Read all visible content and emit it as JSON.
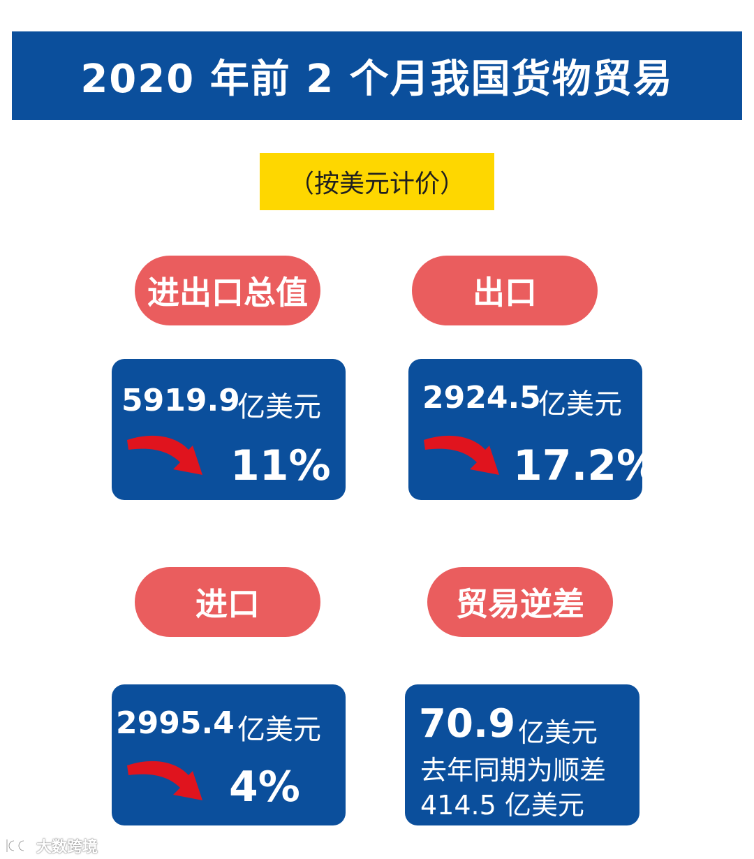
{
  "banner": {
    "title": "2020 年前 2 个月我国货物贸易"
  },
  "note": "（按美元计价）",
  "panels": {
    "total": {
      "label": "进出口总值",
      "amount": "5919.9",
      "unit": "亿美元",
      "change": "11%",
      "direction": "down"
    },
    "export": {
      "label": "出口",
      "amount": "2924.5",
      "unit": "亿美元",
      "change": "17.2%",
      "direction": "down"
    },
    "import": {
      "label": "进口",
      "amount": "2995.4",
      "unit": "亿美元",
      "change": "4%",
      "direction": "down"
    },
    "deficit": {
      "label": "贸易逆差",
      "amount": "70.9",
      "unit": "亿美元",
      "note_line1": "去年同期为顺差",
      "note_line2": "414.5 亿美元"
    }
  },
  "watermark": {
    "text": "大数跨境"
  },
  "colors": {
    "banner_blue": "#0b4f9c",
    "note_yellow": "#fed700",
    "pill_red": "#ea5d5e",
    "arrow_red": "#e0141e"
  },
  "icons": {
    "decline": "down-arrow-icon"
  }
}
